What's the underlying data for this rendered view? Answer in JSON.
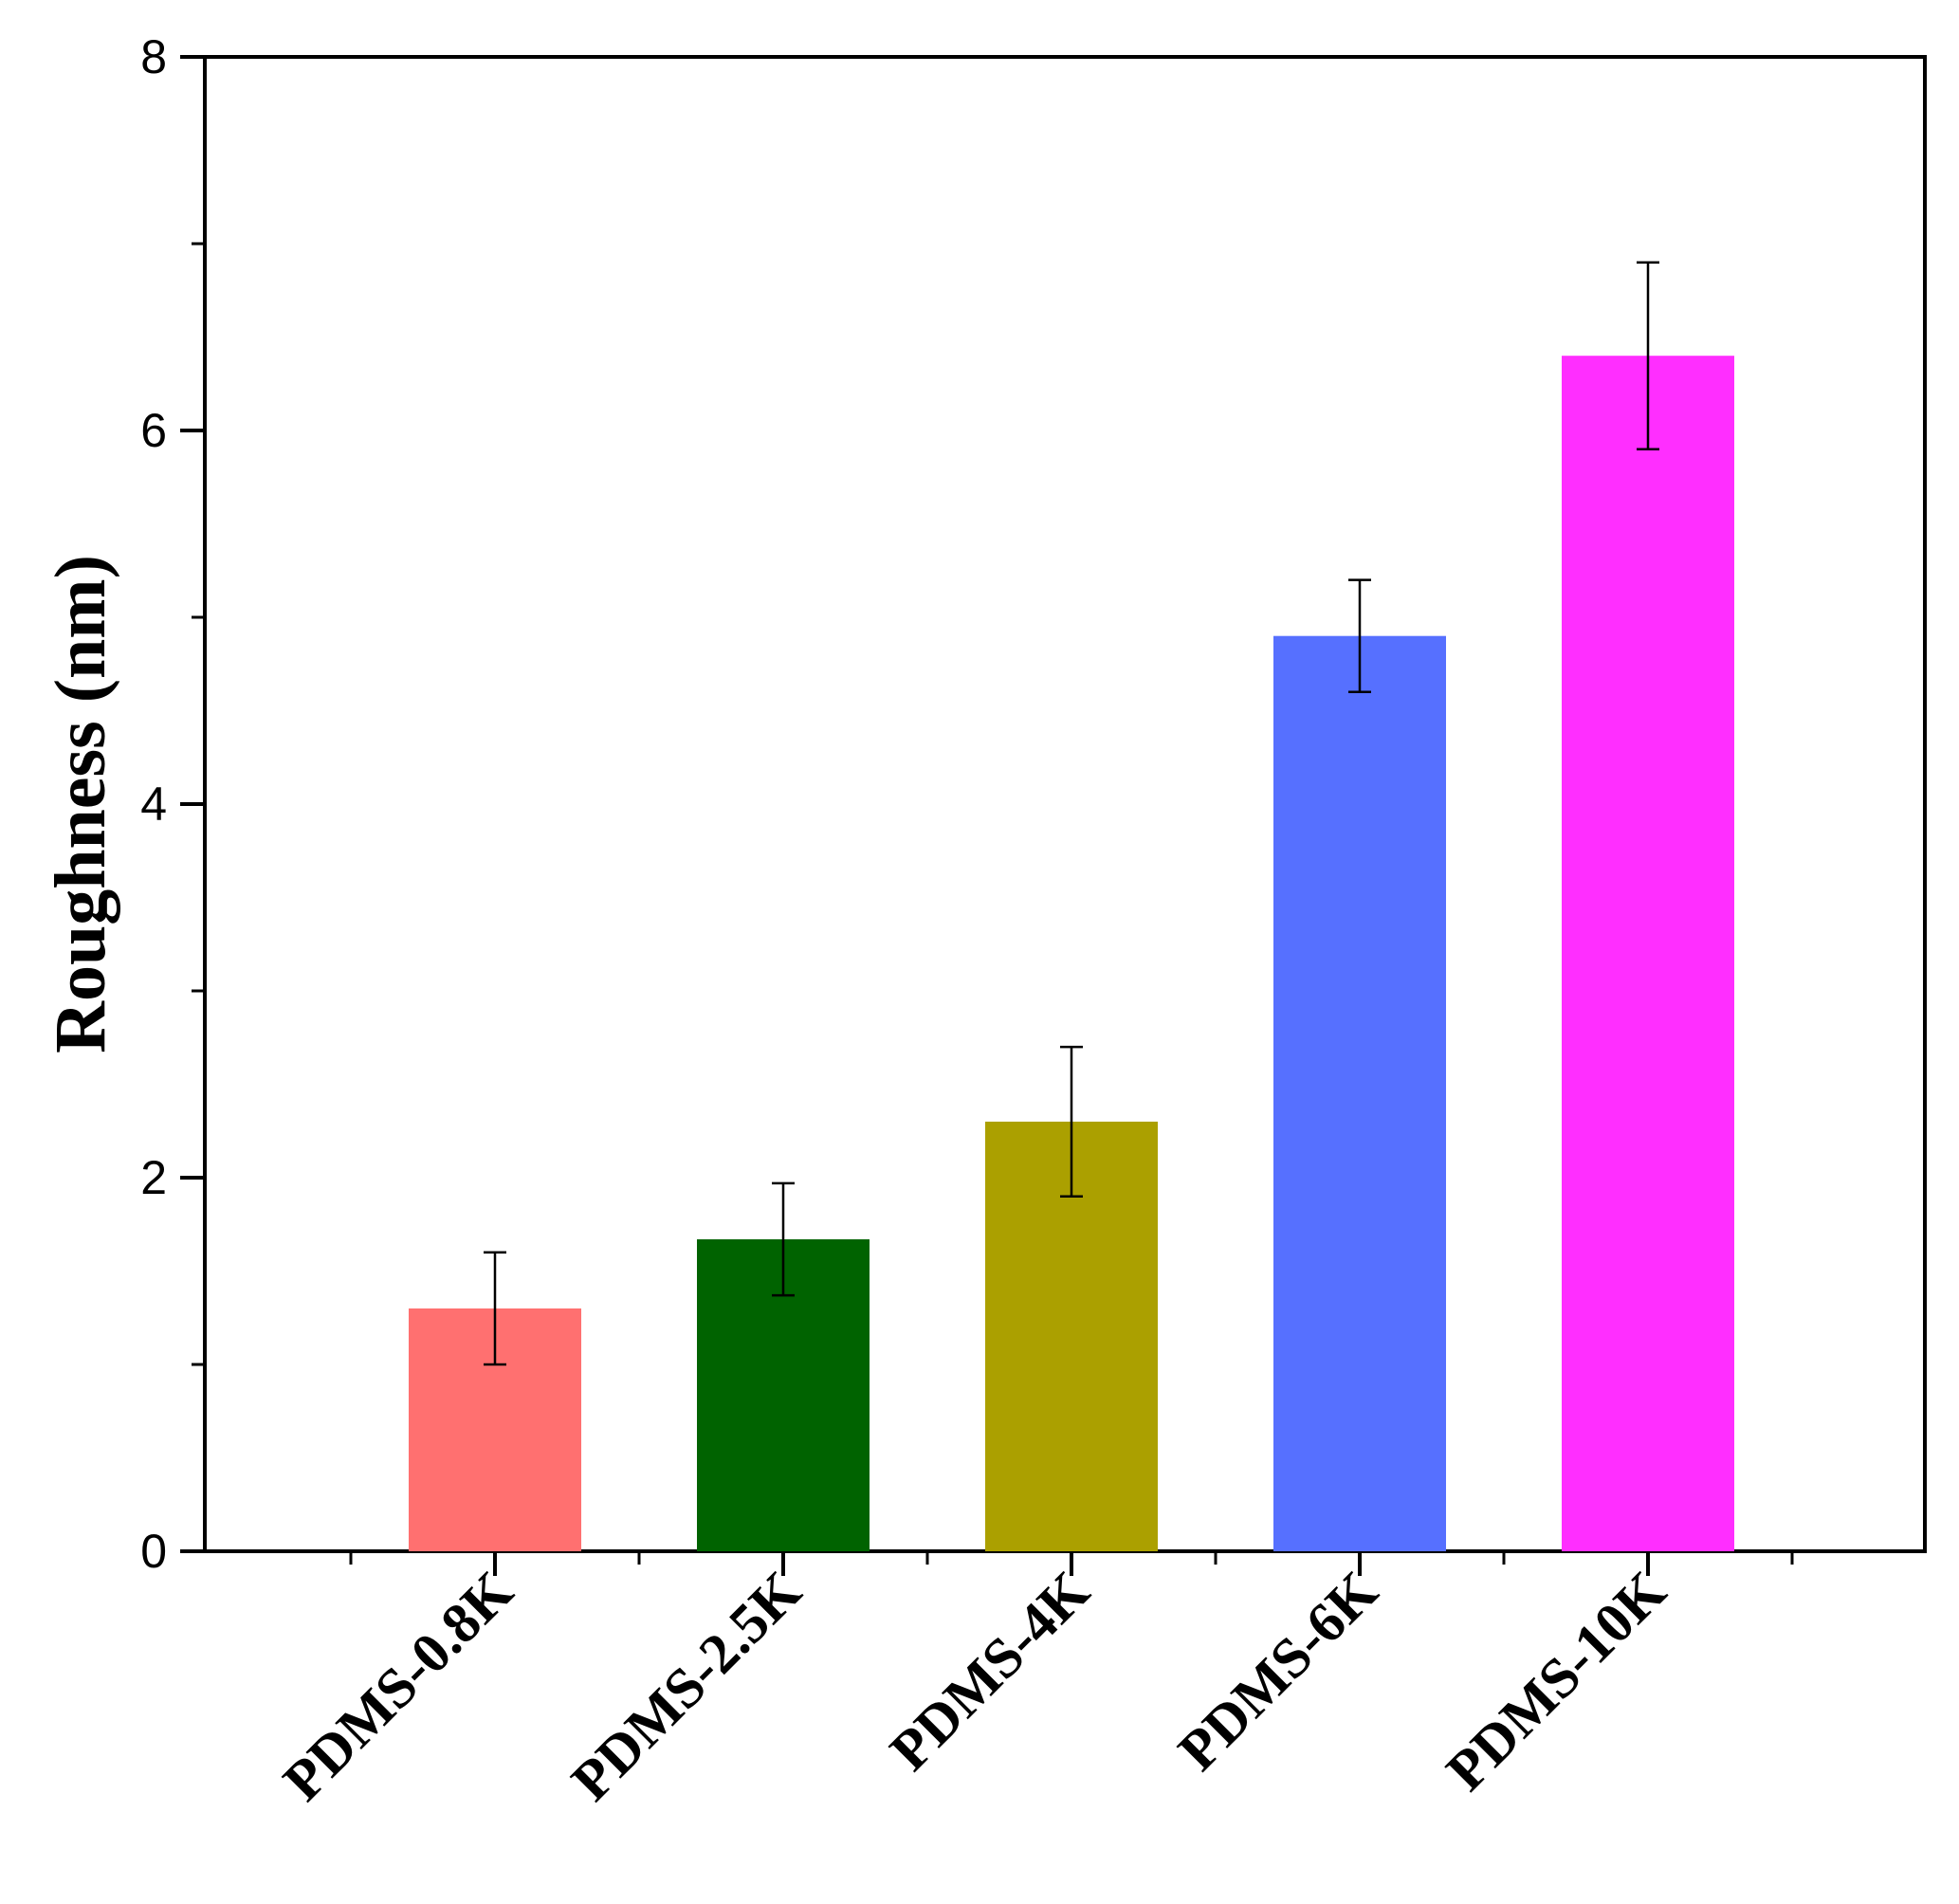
{
  "chart_data": {
    "type": "bar",
    "title": "",
    "xlabel": "",
    "ylabel": "Roughness (nm)",
    "ylim": [
      0,
      8
    ],
    "yticks": [
      0,
      2,
      4,
      6,
      8
    ],
    "categories": [
      "PDMS-0.8K",
      "PDMS-2.5K",
      "PDMS-4K",
      "PDMS-6K",
      "PDMS-10K"
    ],
    "values": [
      1.3,
      1.67,
      2.3,
      4.9,
      6.4
    ],
    "error": [
      0.3,
      0.3,
      0.4,
      0.3,
      0.5
    ],
    "colors": [
      "#ff7070",
      "#006300",
      "#aba000",
      "#5670ff",
      "#ff2eff"
    ],
    "grid": false,
    "legend": "none"
  }
}
